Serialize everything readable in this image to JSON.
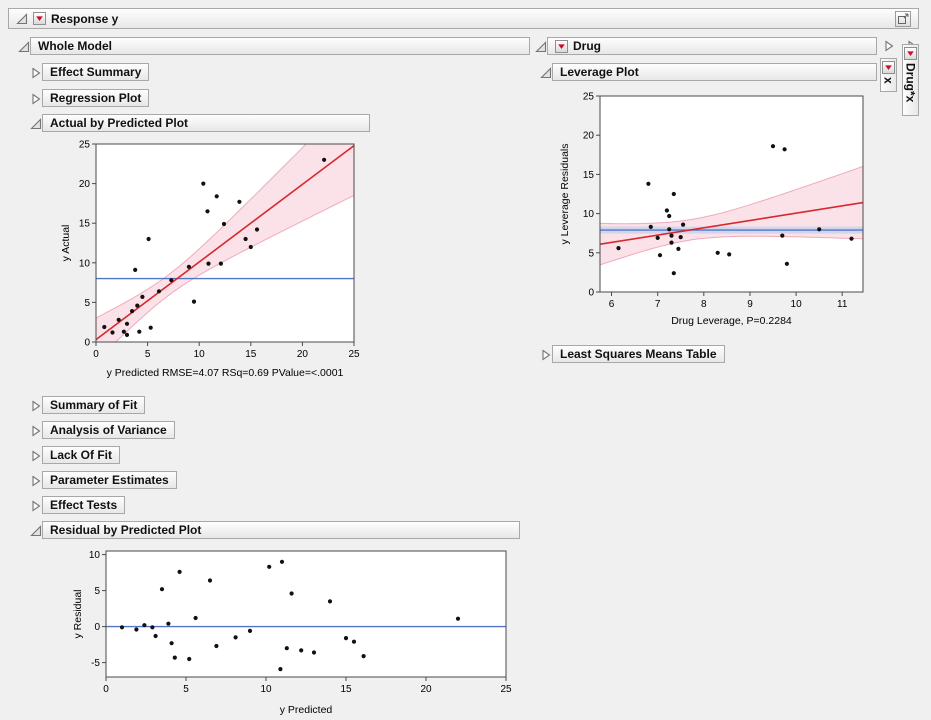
{
  "title_bar": {
    "label": "Response y"
  },
  "sections": {
    "whole_model": "Whole Model",
    "drug": "Drug",
    "tab_x": "x",
    "tab_drug_x": "Drug*x"
  },
  "whole_model_items": {
    "effect_summary": "Effect Summary",
    "regression_plot": "Regression Plot",
    "actual_by_predicted": "Actual by Predicted Plot",
    "summary_of_fit": "Summary of Fit",
    "analysis_of_variance": "Analysis of Variance",
    "lack_of_fit": "Lack Of Fit",
    "parameter_estimates": "Parameter Estimates",
    "effect_tests": "Effect Tests",
    "residual_by_predicted": "Residual by Predicted Plot"
  },
  "drug_items": {
    "leverage_plot": "Leverage Plot",
    "least_squares_means_table": "Least Squares Means Table"
  },
  "colors": {
    "accent_red": "#c8102e",
    "fit_line": "#d7282f",
    "confidence_fill": "#f8d3dc",
    "confidence_edge": "#efaabb",
    "mean_line": "#5276c6",
    "header_border": "#a8a8a8"
  },
  "chart_data": [
    {
      "id": "actual-by-predicted",
      "type": "scatter",
      "title": "Actual by Predicted Plot",
      "xlabel": "y Predicted RMSE=4.07 RSq=0.69 PValue=<.0001",
      "ylabel": "y Actual",
      "xlim": [
        0,
        25
      ],
      "ylim": [
        0,
        25
      ],
      "xticks": [
        0,
        5,
        10,
        15,
        20,
        25
      ],
      "yticks": [
        0,
        5,
        10,
        15,
        20,
        25
      ],
      "grid": false,
      "points": [
        [
          0.8,
          1.9
        ],
        [
          1.6,
          1.2
        ],
        [
          2.2,
          2.8
        ],
        [
          2.7,
          1.3
        ],
        [
          3.0,
          2.3
        ],
        [
          3.0,
          0.9
        ],
        [
          3.5,
          3.9
        ],
        [
          3.8,
          9.1
        ],
        [
          4.0,
          4.6
        ],
        [
          4.2,
          1.3
        ],
        [
          4.5,
          5.7
        ],
        [
          5.1,
          13.0
        ],
        [
          5.3,
          1.8
        ],
        [
          6.1,
          6.4
        ],
        [
          7.3,
          7.8
        ],
        [
          9.0,
          9.5
        ],
        [
          9.5,
          5.1
        ],
        [
          10.4,
          20.0
        ],
        [
          10.8,
          16.5
        ],
        [
          10.9,
          9.9
        ],
        [
          11.7,
          18.4
        ],
        [
          12.1,
          9.9
        ],
        [
          12.4,
          14.9
        ],
        [
          13.9,
          17.7
        ],
        [
          14.5,
          13.0
        ],
        [
          15.0,
          12.0
        ],
        [
          15.6,
          14.2
        ],
        [
          22.1,
          23.0
        ]
      ],
      "fit_line": {
        "x1": 0,
        "y1": 0.3,
        "x2": 25,
        "y2": 24.8,
        "color": "#d7282f"
      },
      "confidence_band": {
        "center_x": 7,
        "half_width_min": 1.3,
        "spread": 3.8,
        "fill": "#f8d3dc",
        "edge": "#efaabb"
      },
      "mean_line": {
        "y": 8,
        "color": "#5276c6"
      }
    },
    {
      "id": "drug-leverage",
      "type": "scatter",
      "title": "Leverage Plot",
      "xlabel": "Drug Leverage, P=0.2284",
      "ylabel": "y Leverage Residuals",
      "xlim": [
        5.75,
        11.45
      ],
      "ylim": [
        0,
        25
      ],
      "xticks": [
        6,
        7,
        8,
        9,
        10,
        11
      ],
      "yticks": [
        0,
        5,
        10,
        15,
        20,
        25
      ],
      "grid": false,
      "points": [
        [
          6.15,
          5.6
        ],
        [
          6.8,
          13.8
        ],
        [
          6.85,
          8.3
        ],
        [
          7.0,
          6.9
        ],
        [
          7.05,
          4.7
        ],
        [
          7.2,
          10.4
        ],
        [
          7.25,
          9.7
        ],
        [
          7.25,
          8.0
        ],
        [
          7.3,
          7.2
        ],
        [
          7.3,
          6.3
        ],
        [
          7.35,
          12.5
        ],
        [
          7.35,
          2.4
        ],
        [
          7.45,
          5.5
        ],
        [
          7.5,
          7.0
        ],
        [
          7.55,
          8.6
        ],
        [
          8.3,
          5.0
        ],
        [
          8.55,
          4.8
        ],
        [
          9.5,
          18.6
        ],
        [
          9.75,
          18.2
        ],
        [
          9.7,
          7.2
        ],
        [
          9.8,
          3.6
        ],
        [
          10.5,
          8.0
        ],
        [
          11.2,
          6.8
        ]
      ],
      "fit_line": {
        "x1": 5.75,
        "y1": 6.1,
        "x2": 11.45,
        "y2": 11.4,
        "color": "#d7282f"
      },
      "confidence_band": {
        "center_x": 7.7,
        "half_width_min": 1.3,
        "spread": 1.1,
        "fill": "#f8d3dc",
        "edge": "#efaabb"
      },
      "mean_line": {
        "y": 7.9,
        "color": "#5276c6"
      },
      "mean_band": {
        "y": 7.9,
        "half_width": 0.45,
        "fill": "#b9cdf0"
      }
    },
    {
      "id": "residual-by-predicted",
      "type": "scatter",
      "title": "Residual by Predicted Plot",
      "xlabel": "y Predicted",
      "ylabel": "y Residual",
      "xlim": [
        0,
        25
      ],
      "ylim": [
        -7,
        10.5
      ],
      "xticks": [
        0,
        5,
        10,
        15,
        20,
        25
      ],
      "yticks": [
        -5,
        0,
        5,
        10
      ],
      "grid": false,
      "points": [
        [
          1.0,
          -0.1
        ],
        [
          1.9,
          -0.4
        ],
        [
          2.4,
          0.2
        ],
        [
          2.9,
          -0.1
        ],
        [
          3.1,
          -1.3
        ],
        [
          3.5,
          5.2
        ],
        [
          3.9,
          0.4
        ],
        [
          4.1,
          -2.3
        ],
        [
          4.3,
          -4.3
        ],
        [
          4.6,
          7.6
        ],
        [
          5.2,
          -4.5
        ],
        [
          5.6,
          1.2
        ],
        [
          6.5,
          6.4
        ],
        [
          6.9,
          -2.7
        ],
        [
          8.1,
          -1.5
        ],
        [
          9.0,
          -0.6
        ],
        [
          10.2,
          8.3
        ],
        [
          10.9,
          -5.9
        ],
        [
          11.0,
          9.0
        ],
        [
          11.3,
          -3.0
        ],
        [
          11.6,
          4.6
        ],
        [
          12.2,
          -3.3
        ],
        [
          13.0,
          -3.6
        ],
        [
          14.0,
          3.5
        ],
        [
          15.0,
          -1.6
        ],
        [
          15.5,
          -2.1
        ],
        [
          16.1,
          -4.1
        ],
        [
          22.0,
          1.1
        ]
      ],
      "mean_line": {
        "y": 0,
        "color": "#5276c6"
      }
    }
  ]
}
